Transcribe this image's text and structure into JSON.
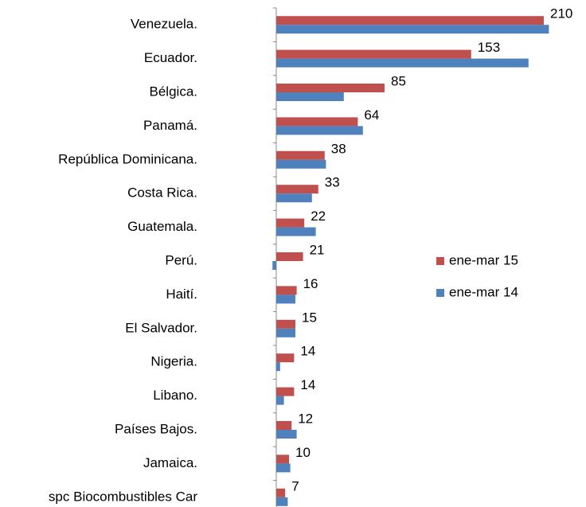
{
  "chart_data": {
    "type": "hbar",
    "categories": [
      "Venezuela.",
      "Ecuador.",
      "Bélgica.",
      "Panamá.",
      "República Dominicana.",
      "Costa Rica.",
      "Guatemala.",
      "Perú.",
      "Haití.",
      "El Salvador.",
      "Nigeria.",
      "Libano.",
      "Países Bajos.",
      "Jamaica.",
      "spc Biocombustibles Car"
    ],
    "series": [
      {
        "name": "ene-mar 15",
        "color": "#c0504d",
        "values": [
          210,
          153,
          85,
          64,
          38,
          33,
          22,
          21,
          16,
          15,
          14,
          14,
          12,
          10,
          7
        ],
        "show_labels": true
      },
      {
        "name": "ene-mar 14",
        "color": "#4f81bd",
        "values": [
          214,
          198,
          53,
          68,
          39,
          28,
          31,
          -3,
          15,
          15,
          3,
          6,
          16,
          11,
          9
        ],
        "show_labels": false
      }
    ],
    "xlim": [
      -5,
      225
    ],
    "legend": "right"
  }
}
